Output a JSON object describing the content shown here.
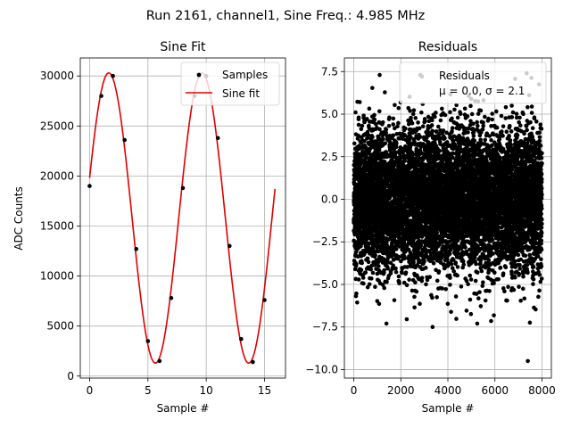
{
  "figure": {
    "suptitle": "Run 2161, channel1, Sine Freq.: 4.985 MHz"
  },
  "chart_data": [
    {
      "type": "line",
      "title": "Sine Fit",
      "xlabel": "Sample #",
      "ylabel": "ADC Counts",
      "xlim": [
        -0.8,
        16.8
      ],
      "ylim": [
        -200,
        31800
      ],
      "xticks": [
        0,
        5,
        10,
        15
      ],
      "yticks": [
        0,
        5000,
        10000,
        15000,
        20000,
        25000,
        30000
      ],
      "grid": true,
      "legend": {
        "position": "top-right",
        "entries": [
          "Samples",
          "Sine fit"
        ]
      },
      "series": [
        {
          "name": "Samples",
          "kind": "scatter",
          "color": "#000000",
          "x": [
            0,
            1,
            2,
            3,
            4,
            5,
            6,
            7,
            8,
            9,
            10,
            11,
            12,
            13,
            14,
            15
          ],
          "y": [
            19000,
            28000,
            30000,
            23600,
            12700,
            3500,
            1500,
            7800,
            18800,
            28000,
            30000,
            23800,
            13000,
            3700,
            1400,
            7600
          ]
        },
        {
          "name": "Sine fit",
          "kind": "line",
          "color": "#e00000",
          "function": {
            "offset": 15800,
            "amplitude": 14500,
            "period": 8.0,
            "phase_x": -0.357
          },
          "x_range": [
            0,
            15.9
          ]
        }
      ]
    },
    {
      "type": "scatter",
      "title": "Residuals",
      "xlabel": "Sample #",
      "ylabel": "",
      "xlim": [
        -400,
        8400
      ],
      "ylim": [
        -10.5,
        8.3
      ],
      "xticks": [
        0,
        2000,
        4000,
        6000,
        8000
      ],
      "yticks": [
        -10.0,
        -7.5,
        -5.0,
        -2.5,
        0.0,
        2.5,
        5.0,
        7.5
      ],
      "grid": true,
      "legend": {
        "position": "top-right",
        "entries": [
          "Residuals"
        ],
        "annotation": "μ = 0.0, σ = 2.1"
      },
      "series": [
        {
          "name": "Residuals",
          "color": "#000000",
          "distribution": {
            "n": 8000,
            "x_min": 0,
            "x_max": 8000,
            "mean": 0.0,
            "std": 2.1
          },
          "notable_points": [
            {
              "x": 7400,
              "y": -9.5
            },
            {
              "x": 3350,
              "y": -7.5
            },
            {
              "x": 1100,
              "y": 7.3
            },
            {
              "x": 7350,
              "y": 7.4
            }
          ]
        }
      ]
    }
  ]
}
